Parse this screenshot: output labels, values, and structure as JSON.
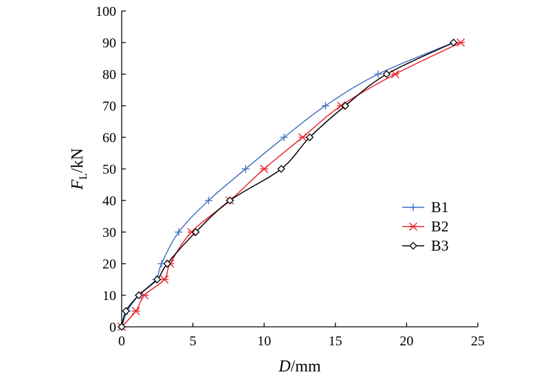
{
  "chart_data": {
    "type": "line",
    "xlabel": {
      "var": "D",
      "unit": "/mm"
    },
    "ylabel": {
      "var": "F",
      "sub": "L",
      "unit": "/kN"
    },
    "xlim": [
      0,
      25
    ],
    "ylim": [
      0,
      100
    ],
    "xticks": [
      0,
      5,
      10,
      15,
      20,
      25
    ],
    "yticks": [
      0,
      10,
      20,
      30,
      40,
      50,
      60,
      70,
      80,
      90,
      100
    ],
    "grid": false,
    "legend_position": "right-middle",
    "series": [
      {
        "name": "B1",
        "color": "#4472C4",
        "marker": "plus",
        "points": [
          [
            0,
            0
          ],
          [
            0.4,
            5
          ],
          [
            1.2,
            10
          ],
          [
            2.4,
            15
          ],
          [
            2.8,
            20
          ],
          [
            4.0,
            30
          ],
          [
            6.1,
            40
          ],
          [
            8.7,
            50
          ],
          [
            11.4,
            60
          ],
          [
            14.3,
            70
          ],
          [
            18.0,
            80
          ],
          [
            23.3,
            90
          ]
        ]
      },
      {
        "name": "B2",
        "color": "#E8242B",
        "marker": "asterisk",
        "points": [
          [
            0,
            0
          ],
          [
            1.0,
            5
          ],
          [
            1.6,
            10
          ],
          [
            3.0,
            15
          ],
          [
            3.4,
            20
          ],
          [
            4.9,
            30
          ],
          [
            7.6,
            40
          ],
          [
            10.0,
            50
          ],
          [
            12.7,
            60
          ],
          [
            15.4,
            70
          ],
          [
            19.2,
            80
          ],
          [
            23.8,
            90
          ]
        ]
      },
      {
        "name": "B3",
        "color": "#000000",
        "marker": "diamond",
        "points": [
          [
            0,
            0
          ],
          [
            0.3,
            5
          ],
          [
            1.2,
            10
          ],
          [
            2.5,
            15
          ],
          [
            3.2,
            20
          ],
          [
            5.2,
            30
          ],
          [
            7.6,
            40
          ],
          [
            11.2,
            50
          ],
          [
            13.2,
            60
          ],
          [
            15.7,
            70
          ],
          [
            18.6,
            80
          ],
          [
            23.3,
            90
          ]
        ]
      }
    ]
  }
}
